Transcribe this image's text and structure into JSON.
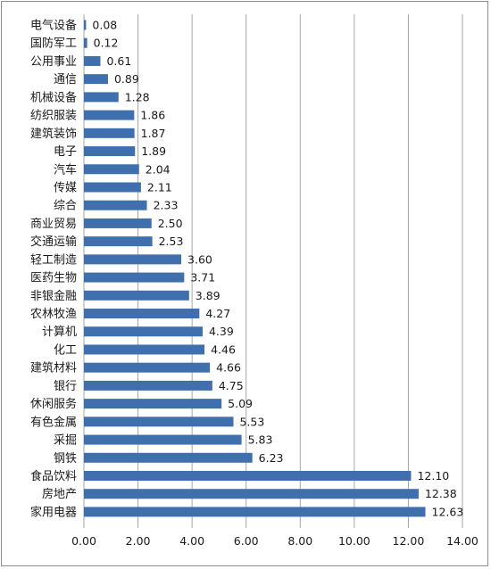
{
  "chart_data": {
    "type": "bar",
    "orientation": "horizontal",
    "categories": [
      "电气设备",
      "国防军工",
      "公用事业",
      "通信",
      "机械设备",
      "纺织服装",
      "建筑装饰",
      "电子",
      "汽车",
      "传媒",
      "综合",
      "商业贸易",
      "交通运输",
      "轻工制造",
      "医药生物",
      "非银金融",
      "农林牧渔",
      "计算机",
      "化工",
      "建筑材料",
      "银行",
      "休闲服务",
      "有色金属",
      "采掘",
      "钢铁",
      "食品饮料",
      "房地产",
      "家用电器"
    ],
    "values": [
      0.08,
      0.12,
      0.61,
      0.89,
      1.28,
      1.86,
      1.87,
      1.89,
      2.04,
      2.11,
      2.33,
      2.5,
      2.53,
      3.6,
      3.71,
      3.89,
      4.27,
      4.39,
      4.46,
      4.66,
      4.75,
      5.09,
      5.53,
      5.83,
      6.23,
      12.1,
      12.38,
      12.63
    ],
    "value_labels": [
      "0.08",
      "0.12",
      "0.61",
      "0.89",
      "1.28",
      "1.86",
      "1.87",
      "1.89",
      "2.04",
      "2.11",
      "2.33",
      "2.50",
      "2.53",
      "3.60",
      "3.71",
      "3.89",
      "4.27",
      "4.39",
      "4.46",
      "4.66",
      "4.75",
      "5.09",
      "5.53",
      "5.83",
      "6.23",
      "12.10",
      "12.38",
      "12.63"
    ],
    "xlim": [
      0,
      14
    ],
    "xticks": [
      "0.00",
      "2.00",
      "4.00",
      "6.00",
      "8.00",
      "10.00",
      "12.00",
      "14.00"
    ],
    "title": "",
    "xlabel": "",
    "ylabel": "",
    "grid": "vertical",
    "legend": "none",
    "bar_color": "#3f6fad",
    "gridline_color": "#a6a6a6"
  }
}
